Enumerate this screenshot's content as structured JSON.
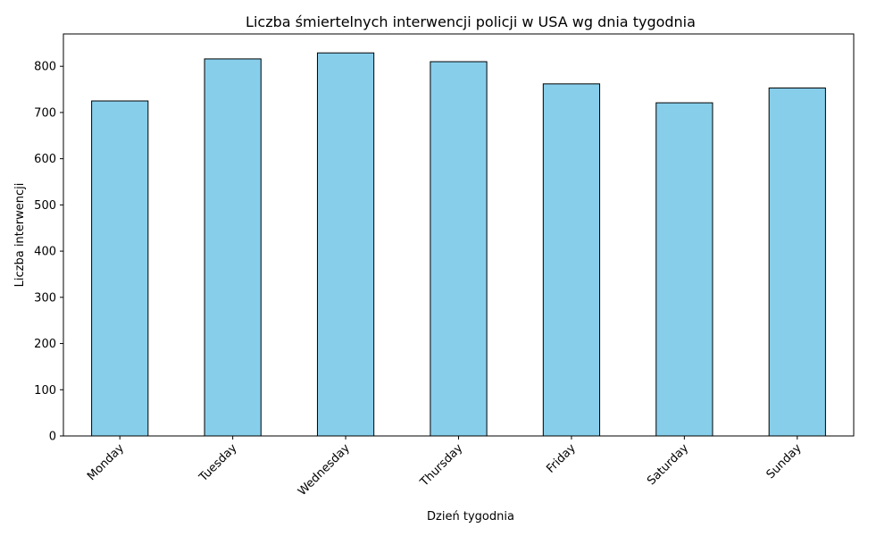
{
  "chart_data": {
    "type": "bar",
    "title": "Liczba śmiertelnych interwencji policji w USA wg dnia tygodnia",
    "xlabel": "Dzień tygodnia",
    "ylabel": "Liczba interwencji",
    "categories": [
      "Monday",
      "Tuesday",
      "Wednesday",
      "Thursday",
      "Friday",
      "Saturday",
      "Sunday"
    ],
    "values": [
      725,
      816,
      829,
      810,
      762,
      721,
      753
    ],
    "ylim": [
      0,
      870
    ],
    "yticks": [
      0,
      100,
      200,
      300,
      400,
      500,
      600,
      700,
      800
    ],
    "bar_color": "#87CEEB",
    "edge_color": "#000000",
    "grid": false,
    "xtick_rotation": 45
  }
}
